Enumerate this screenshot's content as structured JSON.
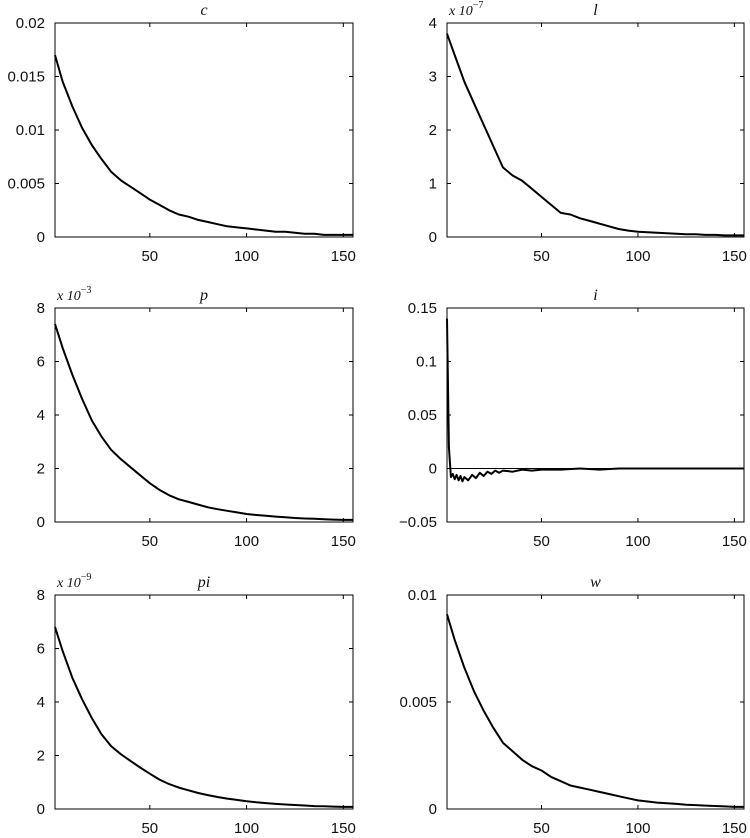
{
  "chart_data": [
    {
      "type": "line",
      "title": "c",
      "multiplier": "",
      "xlim": [
        1,
        155
      ],
      "ylim": [
        0,
        0.02
      ],
      "xticks": [
        50,
        100,
        150
      ],
      "yticks": [
        0,
        0.005,
        0.01,
        0.015,
        0.02
      ],
      "ytick_labels": [
        "0",
        "0.005",
        "0.01",
        "0.015",
        "0.02"
      ],
      "series": [
        {
          "x": [
            1,
            5,
            10,
            15,
            20,
            25,
            30,
            35,
            40,
            45,
            50,
            55,
            60,
            65,
            70,
            75,
            80,
            85,
            90,
            95,
            100,
            105,
            110,
            115,
            120,
            125,
            130,
            135,
            140,
            145,
            150,
            155
          ],
          "y": [
            0.017,
            0.0145,
            0.0122,
            0.0102,
            0.0086,
            0.0073,
            0.0061,
            0.0053,
            0.0047,
            0.0041,
            0.0035,
            0.003,
            0.0025,
            0.0021,
            0.0019,
            0.0016,
            0.0014,
            0.0012,
            0.001,
            0.0009,
            0.0008,
            0.0007,
            0.0006,
            0.0005,
            0.0005,
            0.0004,
            0.0003,
            0.0003,
            0.0002,
            0.0002,
            0.0002,
            0.0002
          ]
        }
      ]
    },
    {
      "type": "line",
      "title": "l",
      "multiplier": "x 10",
      "multiplier_exp": "−7",
      "xlim": [
        1,
        155
      ],
      "ylim": [
        0,
        4
      ],
      "xticks": [
        50,
        100,
        150
      ],
      "yticks": [
        0,
        1,
        2,
        3,
        4
      ],
      "ytick_labels": [
        "0",
        "1",
        "2",
        "3",
        "4"
      ],
      "series": [
        {
          "x": [
            1,
            5,
            10,
            15,
            20,
            25,
            30,
            35,
            40,
            45,
            50,
            55,
            60,
            65,
            70,
            75,
            80,
            85,
            90,
            95,
            100,
            105,
            110,
            115,
            120,
            125,
            130,
            135,
            140,
            145,
            150,
            155
          ],
          "y": [
            3.8,
            3.4,
            2.9,
            2.5,
            2.1,
            1.7,
            1.3,
            1.15,
            1.05,
            0.9,
            0.75,
            0.6,
            0.45,
            0.42,
            0.35,
            0.3,
            0.25,
            0.2,
            0.15,
            0.12,
            0.1,
            0.09,
            0.08,
            0.07,
            0.06,
            0.05,
            0.05,
            0.04,
            0.04,
            0.03,
            0.03,
            0.03
          ]
        }
      ]
    },
    {
      "type": "line",
      "title": "p",
      "multiplier": "x 10",
      "multiplier_exp": "−3",
      "xlim": [
        1,
        155
      ],
      "ylim": [
        0,
        8
      ],
      "xticks": [
        50,
        100,
        150
      ],
      "yticks": [
        0,
        2,
        4,
        6,
        8
      ],
      "ytick_labels": [
        "0",
        "2",
        "4",
        "6",
        "8"
      ],
      "series": [
        {
          "x": [
            1,
            5,
            10,
            15,
            20,
            25,
            30,
            35,
            40,
            45,
            50,
            55,
            60,
            65,
            70,
            75,
            80,
            85,
            90,
            95,
            100,
            105,
            110,
            115,
            120,
            125,
            130,
            135,
            140,
            145,
            150,
            155
          ],
          "y": [
            7.4,
            6.5,
            5.5,
            4.6,
            3.8,
            3.2,
            2.7,
            2.35,
            2.05,
            1.75,
            1.45,
            1.2,
            1.0,
            0.85,
            0.75,
            0.65,
            0.55,
            0.48,
            0.42,
            0.36,
            0.3,
            0.26,
            0.23,
            0.2,
            0.18,
            0.15,
            0.13,
            0.12,
            0.1,
            0.09,
            0.08,
            0.08
          ]
        }
      ]
    },
    {
      "type": "line",
      "title": "i",
      "multiplier": "",
      "xlim": [
        1,
        155
      ],
      "ylim": [
        -0.05,
        0.15
      ],
      "xticks": [
        50,
        100,
        150
      ],
      "yticks": [
        -0.05,
        0,
        0.05,
        0.1,
        0.15
      ],
      "ytick_labels": [
        "−0.05",
        "0",
        "0.05",
        "0.1",
        "0.15"
      ],
      "series": [
        {
          "x": [
            1,
            2,
            3,
            4,
            5,
            6,
            7,
            8,
            9,
            10,
            12,
            14,
            16,
            18,
            20,
            22,
            24,
            26,
            28,
            30,
            35,
            40,
            45,
            50,
            60,
            70,
            80,
            90,
            100,
            110,
            120,
            130,
            140,
            150,
            155
          ],
          "y": [
            0.14,
            0.02,
            -0.008,
            -0.005,
            -0.01,
            -0.006,
            -0.011,
            -0.007,
            -0.012,
            -0.008,
            -0.011,
            -0.006,
            -0.009,
            -0.004,
            -0.007,
            -0.003,
            -0.005,
            -0.002,
            -0.004,
            -0.002,
            -0.003,
            -0.001,
            -0.002,
            -0.001,
            -0.001,
            0,
            -0.001,
            0,
            0,
            0,
            0,
            0,
            0,
            0,
            0
          ]
        }
      ]
    },
    {
      "type": "line",
      "title": "pi",
      "multiplier": "x 10",
      "multiplier_exp": "−9",
      "xlim": [
        1,
        155
      ],
      "ylim": [
        0,
        8
      ],
      "xticks": [
        50,
        100,
        150
      ],
      "yticks": [
        0,
        2,
        4,
        6,
        8
      ],
      "ytick_labels": [
        "0",
        "2",
        "4",
        "6",
        "8"
      ],
      "series": [
        {
          "x": [
            1,
            5,
            10,
            15,
            20,
            25,
            30,
            35,
            40,
            45,
            50,
            55,
            60,
            65,
            70,
            75,
            80,
            85,
            90,
            95,
            100,
            105,
            110,
            115,
            120,
            125,
            130,
            135,
            140,
            145,
            150,
            155
          ],
          "y": [
            6.8,
            5.9,
            4.9,
            4.1,
            3.4,
            2.8,
            2.35,
            2.05,
            1.8,
            1.55,
            1.32,
            1.1,
            0.93,
            0.8,
            0.7,
            0.6,
            0.52,
            0.45,
            0.39,
            0.34,
            0.29,
            0.25,
            0.22,
            0.19,
            0.17,
            0.15,
            0.13,
            0.11,
            0.1,
            0.09,
            0.08,
            0.08
          ]
        }
      ]
    },
    {
      "type": "line",
      "title": "w",
      "multiplier": "",
      "xlim": [
        1,
        155
      ],
      "ylim": [
        0,
        0.01
      ],
      "xticks": [
        50,
        100,
        150
      ],
      "yticks": [
        0,
        0.005,
        0.01
      ],
      "ytick_labels": [
        "0",
        "0.005",
        "0.01"
      ],
      "series": [
        {
          "x": [
            1,
            5,
            10,
            15,
            20,
            25,
            30,
            35,
            40,
            45,
            50,
            55,
            60,
            65,
            70,
            75,
            80,
            85,
            90,
            95,
            100,
            105,
            110,
            115,
            120,
            125,
            130,
            135,
            140,
            145,
            150,
            155
          ],
          "y": [
            0.0091,
            0.0079,
            0.0066,
            0.0055,
            0.0046,
            0.0038,
            0.0031,
            0.0027,
            0.0023,
            0.002,
            0.0018,
            0.0015,
            0.0013,
            0.0011,
            0.001,
            0.0009,
            0.0008,
            0.0007,
            0.0006,
            0.0005,
            0.0004,
            0.00035,
            0.0003,
            0.00027,
            0.00024,
            0.0002,
            0.00018,
            0.00016,
            0.00014,
            0.00012,
            0.0001,
            0.0001
          ]
        }
      ]
    }
  ]
}
